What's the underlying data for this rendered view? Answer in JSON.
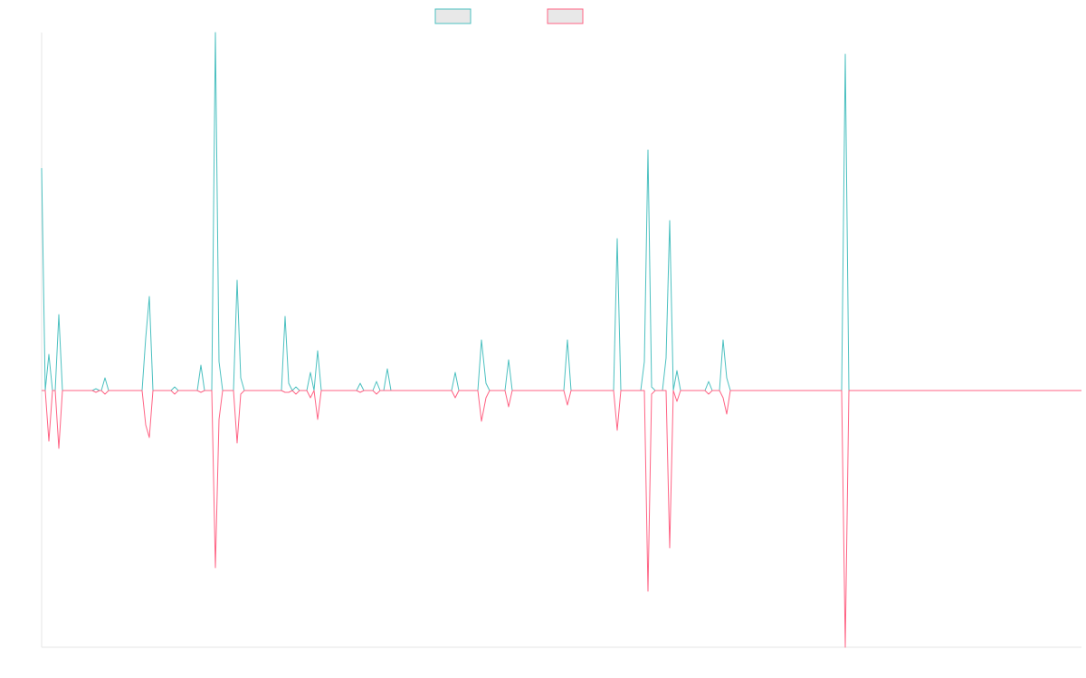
{
  "chart_data": {
    "type": "line",
    "x": [
      0,
      4,
      8,
      12,
      15,
      19,
      23,
      56,
      60,
      64,
      66,
      70,
      74,
      111,
      115,
      119,
      123,
      143,
      147,
      151,
      172,
      176,
      180,
      188,
      192,
      196,
      200,
      212,
      216,
      220,
      224,
      265,
      269,
      273,
      277,
      281,
      285,
      293,
      297,
      301,
      305,
      309,
      348,
      352,
      356,
      366,
      370,
      374,
      378,
      382,
      386,
      453,
      457,
      461,
      482,
      486,
      491,
      495,
      512,
      516,
      520,
      577,
      581,
      585,
      632,
      636,
      640,
      662,
      666,
      670,
      674,
      678,
      686,
      690,
      694,
      698,
      702,
      706,
      733,
      737,
      741,
      749,
      753,
      757,
      761,
      884,
      888,
      892,
      1149
    ],
    "series": [
      {
        "color": "#4bc0c0",
        "values": [
          61.5,
          0,
          10,
          0,
          0,
          21,
          0,
          0,
          0.5,
          0,
          0,
          3.5,
          0,
          0,
          14.5,
          26,
          0,
          0,
          1,
          0,
          0,
          7,
          0,
          0,
          99,
          8,
          0,
          0,
          30.5,
          3.5,
          0,
          0,
          20.5,
          2,
          0,
          1,
          0,
          0,
          5,
          0,
          11,
          0,
          0,
          2,
          0,
          0,
          2.5,
          0,
          0,
          6,
          0,
          0,
          5,
          0,
          0,
          14,
          2,
          0,
          0,
          8.5,
          0,
          0,
          14,
          0,
          0,
          42,
          0,
          0,
          8,
          66.5,
          1,
          0,
          0,
          9,
          47,
          0,
          5.5,
          0,
          0,
          2.5,
          0,
          0,
          14,
          3.5,
          0,
          0,
          93,
          0,
          0
        ]
      },
      {
        "color": "#ff6384",
        "values": [
          0,
          0,
          -14,
          0,
          0,
          -16,
          0,
          0,
          -0.5,
          0,
          0,
          -1,
          0,
          0,
          -9.5,
          -13,
          0,
          0,
          -1,
          0,
          0,
          -0.5,
          0,
          0,
          -49,
          -8,
          0,
          0,
          -14.5,
          -1,
          0,
          0,
          -0.5,
          -0.5,
          0,
          -1,
          0,
          0,
          -2,
          0,
          -8,
          0,
          0,
          -0.5,
          0,
          0,
          -1,
          0,
          0,
          0,
          0,
          0,
          -2,
          0,
          0,
          -8.5,
          -2,
          0,
          0,
          -4.5,
          0,
          0,
          -4,
          0,
          0,
          -11,
          0,
          0,
          0,
          -55.5,
          -1,
          0,
          0,
          0,
          -43.5,
          0,
          -3,
          0,
          0,
          -1,
          0,
          0,
          -2,
          -6.5,
          0,
          0,
          -71,
          0,
          0
        ]
      }
    ],
    "xlim": [
      0,
      1149
    ],
    "ylim": [
      -71,
      99
    ]
  }
}
